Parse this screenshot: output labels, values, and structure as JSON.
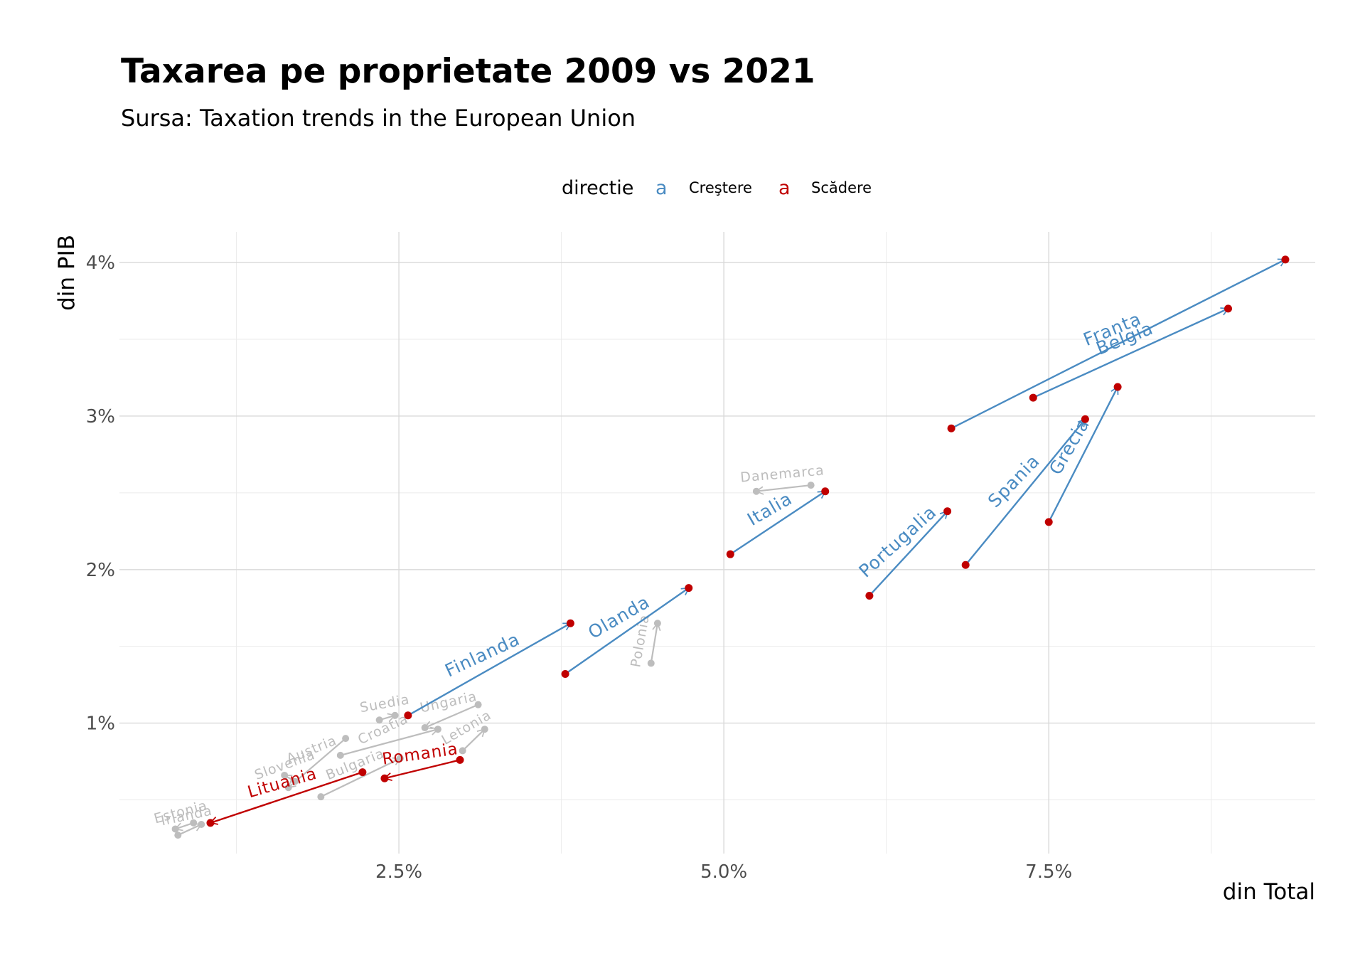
{
  "chart_data": {
    "type": "arrow-scatter",
    "title": "Taxarea pe proprietate 2009 vs 2021",
    "subtitle": "Sursa: Taxation trends in the European Union",
    "xlabel": "din Total",
    "ylabel": "din PIB",
    "x_ticks": [
      "2.5%",
      "5.0%",
      "7.5%"
    ],
    "x_tick_values": [
      2.5,
      5.0,
      7.5
    ],
    "y_ticks": [
      "1%",
      "2%",
      "3%",
      "4%"
    ],
    "y_tick_values": [
      1,
      2,
      3,
      4
    ],
    "xlim": [
      0.35,
      9.55
    ],
    "ylim": [
      0.15,
      4.2
    ],
    "grid": true,
    "legend": {
      "title": "directie",
      "position": "top",
      "entries": [
        {
          "key": "a",
          "label": "Creştere",
          "color": "#4a8bc2"
        },
        {
          "key": "a",
          "label": "Scădere",
          "color": "#c00000"
        }
      ]
    },
    "colors": {
      "crestere": "#4a8bc2",
      "scadere": "#c00000",
      "neutral": "#bdbdbd",
      "point": "#c00000"
    },
    "series": [
      {
        "label": "Franta",
        "group": "crestere",
        "x_2009": 6.75,
        "y_2009": 2.92,
        "x_2021": 9.32,
        "y_2021": 4.02,
        "label_angle": -22
      },
      {
        "label": "Belgia",
        "group": "crestere",
        "x_2009": 7.38,
        "y_2009": 3.12,
        "x_2021": 8.88,
        "y_2021": 3.7,
        "label_angle": -22
      },
      {
        "label": "Grecia",
        "group": "crestere",
        "x_2009": 7.5,
        "y_2009": 2.31,
        "x_2021": 8.03,
        "y_2021": 3.19,
        "label_angle": -60
      },
      {
        "label": "Spania",
        "group": "crestere",
        "x_2009": 6.86,
        "y_2009": 2.03,
        "x_2021": 7.78,
        "y_2021": 2.98,
        "label_angle": -46
      },
      {
        "label": "Portugalia",
        "group": "crestere",
        "x_2009": 6.12,
        "y_2009": 1.83,
        "x_2021": 6.72,
        "y_2021": 2.38,
        "label_angle": -42
      },
      {
        "label": "Italia",
        "group": "crestere",
        "x_2009": 5.05,
        "y_2009": 2.1,
        "x_2021": 5.78,
        "y_2021": 2.51,
        "label_angle": -30
      },
      {
        "label": "Olanda",
        "group": "crestere",
        "x_2009": 3.78,
        "y_2009": 1.32,
        "x_2021": 4.73,
        "y_2021": 1.88,
        "label_angle": -30
      },
      {
        "label": "Finlanda",
        "group": "crestere",
        "x_2009": 2.57,
        "y_2009": 1.05,
        "x_2021": 3.82,
        "y_2021": 1.65,
        "label_angle": -25
      },
      {
        "label": "Romania",
        "group": "scadere",
        "x_2009": 2.97,
        "y_2009": 0.76,
        "x_2021": 2.39,
        "y_2021": 0.64,
        "label_angle": -8
      },
      {
        "label": "Lituania",
        "group": "scadere",
        "x_2009": 2.22,
        "y_2009": 0.68,
        "x_2021": 1.05,
        "y_2021": 0.35,
        "label_angle": -16
      },
      {
        "label": "Danemarca",
        "group": "neutral",
        "x_2009": 5.67,
        "y_2009": 2.55,
        "x_2021": 5.25,
        "y_2021": 2.51,
        "label_angle": -5
      },
      {
        "label": "Polonia",
        "group": "neutral",
        "x_2009": 4.44,
        "y_2009": 1.39,
        "x_2021": 4.49,
        "y_2021": 1.65,
        "label_angle": -80
      },
      {
        "label": "Suedia",
        "group": "neutral",
        "x_2009": 2.35,
        "y_2009": 1.02,
        "x_2021": 2.47,
        "y_2021": 1.05,
        "label_angle": -10
      },
      {
        "label": "Ungaria",
        "group": "neutral",
        "x_2009": 3.11,
        "y_2009": 1.12,
        "x_2021": 2.7,
        "y_2021": 0.97,
        "label_angle": -12
      },
      {
        "label": "Croatia",
        "group": "neutral",
        "x_2009": 2.05,
        "y_2009": 0.79,
        "x_2021": 2.8,
        "y_2021": 0.96,
        "label_angle": -25
      },
      {
        "label": "Letonia",
        "group": "neutral",
        "x_2009": 2.99,
        "y_2009": 0.82,
        "x_2021": 3.16,
        "y_2021": 0.96,
        "label_angle": -30
      },
      {
        "label": "Austria",
        "group": "neutral",
        "x_2009": 2.09,
        "y_2009": 0.9,
        "x_2021": 1.65,
        "y_2021": 0.58,
        "label_angle": -22
      },
      {
        "label": "Bulgaria",
        "group": "neutral",
        "x_2009": 1.9,
        "y_2009": 0.52,
        "x_2021": 2.51,
        "y_2021": 0.77,
        "label_angle": -22
      },
      {
        "label": "Slovenia",
        "group": "neutral",
        "x_2009": 1.7,
        "y_2009": 0.62,
        "x_2021": 1.62,
        "y_2021": 0.66,
        "label_angle": -20
      },
      {
        "label": "Estonia",
        "group": "neutral",
        "x_2009": 0.92,
        "y_2009": 0.35,
        "x_2021": 0.78,
        "y_2021": 0.31,
        "label_angle": -15
      },
      {
        "label": "Irlanda",
        "group": "neutral",
        "x_2009": 0.8,
        "y_2009": 0.27,
        "x_2021": 0.98,
        "y_2021": 0.34,
        "label_angle": -12
      }
    ]
  }
}
